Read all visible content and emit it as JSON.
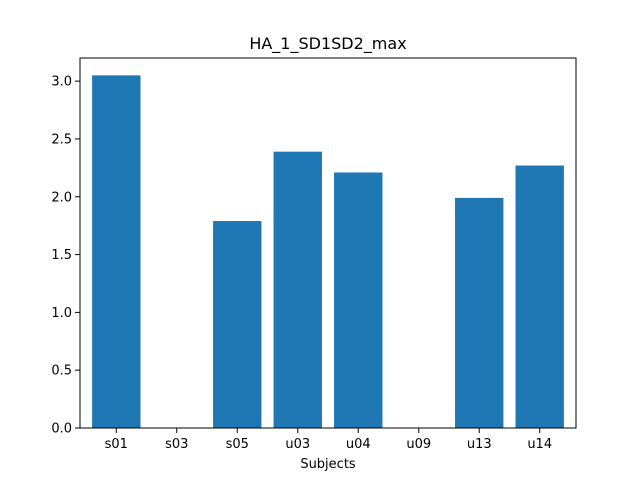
{
  "chart_data": {
    "type": "bar",
    "title": "HA_1_SD1SD2_max",
    "xlabel": "Subjects",
    "ylabel": "",
    "categories": [
      "s01",
      "s03",
      "s05",
      "u03",
      "u04",
      "u09",
      "u13",
      "u14"
    ],
    "values": [
      3.05,
      0,
      1.79,
      2.39,
      2.21,
      0,
      1.99,
      2.27
    ],
    "ylim": [
      0,
      3.2
    ],
    "yticks": [
      0.0,
      0.5,
      1.0,
      1.5,
      2.0,
      2.5,
      3.0
    ],
    "ytick_labels": [
      "0.0",
      "0.5",
      "1.0",
      "1.5",
      "2.0",
      "2.5",
      "3.0"
    ],
    "bar_color": "#1f77b4",
    "grid": false,
    "legend": "none"
  }
}
